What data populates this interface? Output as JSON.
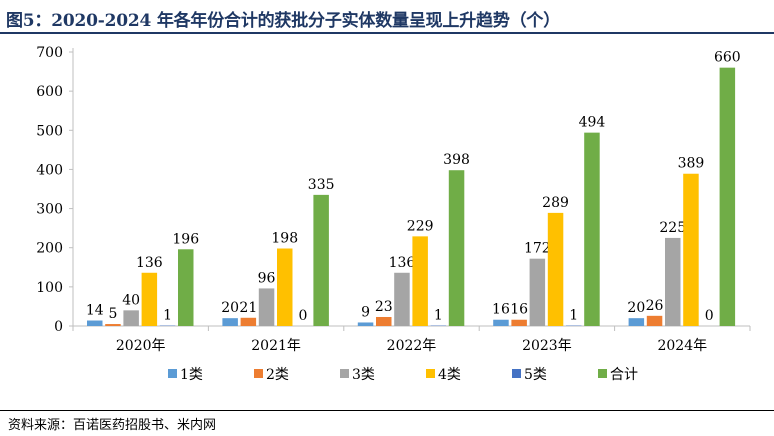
{
  "figure_title": "图5：2020-2024 年各年份合计的获批分子实体数量呈现上升趋势（个）",
  "source_note": "资料来源：百诺医药招股书、米内网",
  "chart_data": {
    "type": "bar",
    "title": "",
    "xlabel": "",
    "ylabel": "",
    "categories": [
      "2020年",
      "2021年",
      "2022年",
      "2023年",
      "2024年"
    ],
    "series": [
      {
        "name": "1类",
        "color": "#5b9bd5",
        "values": [
          14,
          20,
          9,
          16,
          20
        ]
      },
      {
        "name": "2类",
        "color": "#ed7d31",
        "values": [
          5,
          21,
          23,
          16,
          26
        ]
      },
      {
        "name": "3类",
        "color": "#a5a5a5",
        "values": [
          40,
          96,
          136,
          172,
          225
        ]
      },
      {
        "name": "4类",
        "color": "#ffc000",
        "values": [
          136,
          198,
          229,
          289,
          389
        ]
      },
      {
        "name": "5类",
        "color": "#4472c4",
        "values": [
          1,
          0,
          1,
          1,
          0
        ]
      },
      {
        "name": "合计",
        "color": "#70ad47",
        "values": [
          196,
          335,
          398,
          494,
          660
        ]
      }
    ],
    "ylim": [
      0,
      700
    ],
    "yticks": [
      0,
      100,
      200,
      300,
      400,
      500,
      600,
      700
    ],
    "grid": false,
    "legend": "bottom"
  }
}
